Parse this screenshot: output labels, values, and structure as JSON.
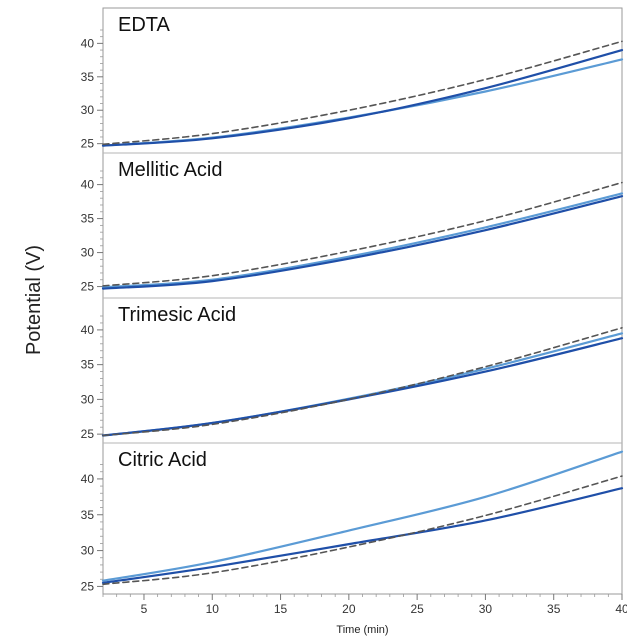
{
  "chart_data": {
    "type": "line",
    "ylabel": "Potential (V)",
    "xlabel": "Time (min)",
    "xlim": [
      2,
      40
    ],
    "x_ticks": [
      5,
      10,
      15,
      20,
      25,
      30,
      35,
      40
    ],
    "y_ticks": [
      25,
      30,
      35,
      40
    ],
    "grid": false,
    "series_styles": [
      {
        "color": "#5b9bd5",
        "dash": false,
        "width": 2.2
      },
      {
        "color": "#1f4fa8",
        "dash": false,
        "width": 2.2
      },
      {
        "color": "#555555",
        "dash": true,
        "width": 1.6
      }
    ],
    "panels": [
      {
        "title": "EDTA",
        "ylim": [
          24.5,
          42
        ],
        "x": [
          2,
          10,
          20,
          30,
          40
        ],
        "series": [
          {
            "values": [
              24.7,
              25.9,
              28.9,
              32.8,
              37.6
            ]
          },
          {
            "values": [
              24.7,
              25.8,
              28.8,
              33.3,
              39.0
            ]
          },
          {
            "values": [
              24.9,
              26.5,
              30.0,
              34.6,
              40.3
            ]
          }
        ]
      },
      {
        "title": "Mellitic Acid",
        "ylim": [
          24.2,
          42
        ],
        "x": [
          2,
          10,
          20,
          30,
          40
        ],
        "series": [
          {
            "values": [
              24.9,
              26.0,
              29.4,
              33.7,
              38.7
            ]
          },
          {
            "values": [
              24.7,
              25.8,
              29.1,
              33.3,
              38.3
            ]
          },
          {
            "values": [
              25.1,
              26.6,
              30.2,
              34.7,
              40.3
            ]
          }
        ]
      },
      {
        "title": "Trimesic Acid",
        "ylim": [
          24.3,
          42
        ],
        "x": [
          2,
          10,
          20,
          30,
          40
        ],
        "series": [
          {
            "values": [
              24.8,
              26.6,
              30.1,
              34.4,
              39.5
            ]
          },
          {
            "values": [
              24.8,
              26.6,
              30.0,
              34.0,
              38.8
            ]
          },
          {
            "values": [
              24.8,
              26.4,
              30.0,
              34.7,
              40.3
            ]
          }
        ]
      },
      {
        "title": "Citric Acid",
        "ylim": [
          24.5,
          42.5
        ],
        "x": [
          2,
          10,
          20,
          30,
          40
        ],
        "series": [
          {
            "values": [
              25.8,
              28.4,
              32.8,
              37.5,
              43.8
            ]
          },
          {
            "values": [
              25.5,
              27.7,
              30.9,
              34.2,
              38.7
            ]
          },
          {
            "values": [
              25.3,
              26.9,
              30.5,
              34.9,
              40.4
            ]
          }
        ]
      }
    ]
  }
}
